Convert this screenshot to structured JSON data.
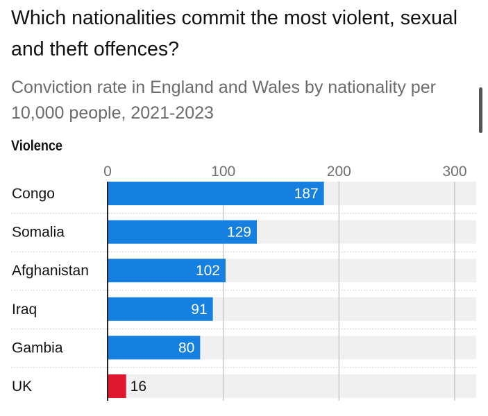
{
  "title": "Which nationalities commit the most violent, sexual and theft offences?",
  "subtitle": "Conviction rate in England and Wales by nationality per 10,000 people, 2021-2023",
  "colors": {
    "bar": "#1580e0",
    "highlight": "#e0182e",
    "track": "#f0f0f0",
    "gridline": "#c8c8c8"
  },
  "chart_data": {
    "type": "bar",
    "orientation": "horizontal",
    "panel": "Violence",
    "categories": [
      "Congo",
      "Somalia",
      "Afghanistan",
      "Iraq",
      "Gambia",
      "UK"
    ],
    "values": [
      187,
      129,
      102,
      91,
      80,
      16
    ],
    "highlight": [
      "UK"
    ],
    "xlim": [
      0,
      320
    ],
    "xticks": [
      0,
      100,
      200,
      300
    ],
    "grid": true,
    "legend": "none"
  }
}
